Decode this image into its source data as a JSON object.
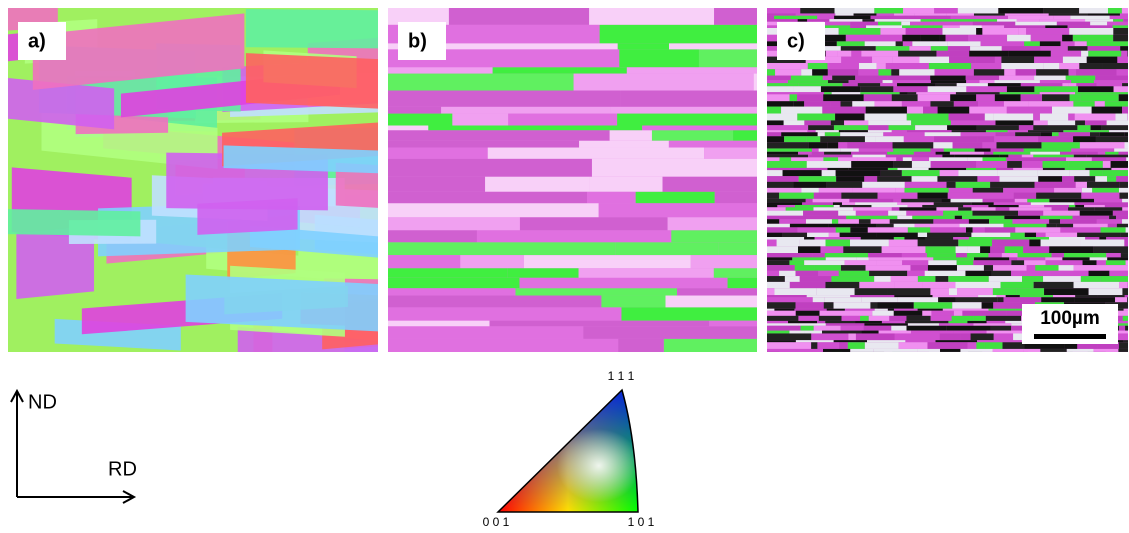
{
  "panels": [
    {
      "label": "a)"
    },
    {
      "label": "b)"
    },
    {
      "label": "c)",
      "scale_bar": "100µm"
    }
  ],
  "axes": {
    "vertical": "ND",
    "horizontal": "RD"
  },
  "legend": {
    "top": "1 1 1",
    "left": "0 0 1",
    "right": "1 0 1"
  }
}
